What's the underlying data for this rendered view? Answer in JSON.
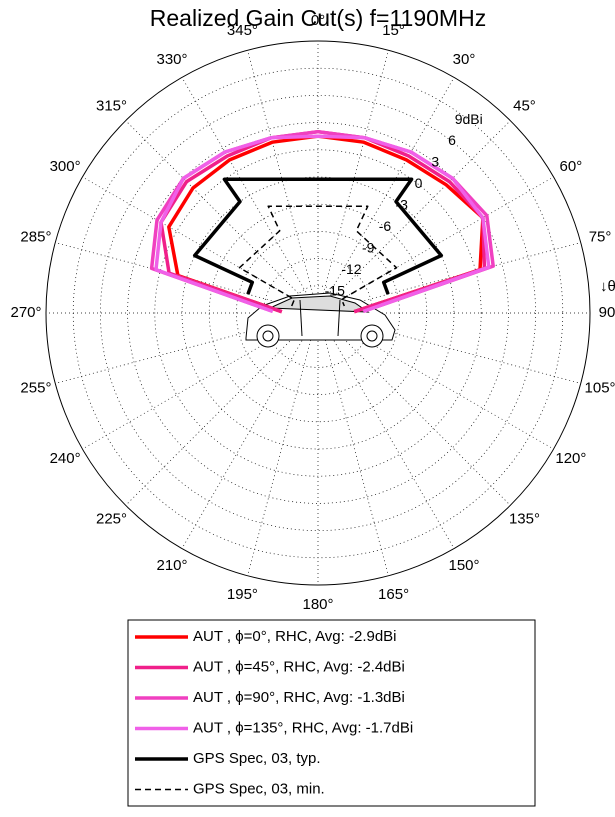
{
  "chart_data": {
    "type": "polar",
    "title": "Realized Gain Cut(s) f=1190MHz",
    "annotation": "↓θ",
    "rlim": [
      -18,
      12
    ],
    "rticks": [
      -15,
      -12,
      -9,
      -6,
      -3,
      0,
      3,
      6,
      {
        "value": 9,
        "label": "9dBi"
      }
    ],
    "thetaticks": [
      {
        "value": 0,
        "label": "0°"
      },
      {
        "value": 15,
        "label": "15°"
      },
      {
        "value": 30,
        "label": "30°"
      },
      {
        "value": 45,
        "label": "45°"
      },
      {
        "value": 60,
        "label": "60°"
      },
      {
        "value": 75,
        "label": "75°"
      },
      {
        "value": 90,
        "label": "90°"
      },
      {
        "value": 105,
        "label": "105°"
      },
      {
        "value": 120,
        "label": "120°"
      },
      {
        "value": 135,
        "label": "135°"
      },
      {
        "value": 150,
        "label": "150°"
      },
      {
        "value": 165,
        "label": "165°"
      },
      {
        "value": 180,
        "label": "180°"
      },
      {
        "value": 195,
        "label": "195°"
      },
      {
        "value": 210,
        "label": "210°"
      },
      {
        "value": 225,
        "label": "225°"
      },
      {
        "value": 240,
        "label": "240°"
      },
      {
        "value": 255,
        "label": "255°"
      },
      {
        "value": 270,
        "label": "270°"
      },
      {
        "value": 285,
        "label": "285°"
      },
      {
        "value": 300,
        "label": "300°"
      },
      {
        "value": 315,
        "label": "315°"
      },
      {
        "value": 330,
        "label": "330°"
      },
      {
        "value": 345,
        "label": "345°"
      }
    ],
    "grid": true,
    "series": [
      {
        "name": "AUT , ϕ=0°, RHC, Avg: -2.9dBi",
        "color": "#ff0000",
        "dash": false,
        "theta": [
          -88,
          -75,
          -60,
          -45,
          -30,
          -15,
          0,
          15,
          30,
          45,
          60,
          75,
          88
        ],
        "values": [
          -14,
          -2,
          1,
          1.5,
          1.5,
          1.5,
          1.5,
          1.5,
          1.5,
          2,
          3,
          0.5,
          -14
        ]
      },
      {
        "name": "AUT , ϕ=45°, RHC, Avg: -2.4dBi",
        "color": "#f0208a",
        "dash": false,
        "theta": [
          -88,
          -75,
          -60,
          -45,
          -30,
          -15,
          0,
          15,
          30,
          45,
          60,
          75,
          88
        ],
        "values": [
          -14,
          -1,
          2,
          2.5,
          2,
          2,
          2,
          2,
          2,
          2.5,
          3,
          1,
          -14
        ]
      },
      {
        "name": "AUT , ϕ=90°, RHC, Avg: -1.3dBi",
        "color": "#f040c0",
        "dash": false,
        "theta": [
          -88,
          -75,
          -60,
          -45,
          -30,
          -15,
          0,
          15,
          30,
          45,
          60,
          75,
          88
        ],
        "values": [
          -13,
          1,
          2.5,
          3,
          2.5,
          2,
          2,
          2,
          2.5,
          3,
          3.5,
          2,
          -13
        ]
      },
      {
        "name": "AUT , ϕ=135°, RHC, Avg: -1.7dBi",
        "color": "#f060e8",
        "dash": false,
        "theta": [
          -88,
          -75,
          -60,
          -45,
          -30,
          -15,
          0,
          15,
          30,
          45,
          60,
          75,
          88
        ],
        "values": [
          -13,
          0.5,
          2,
          3,
          2.5,
          2,
          1.5,
          2,
          2.5,
          3,
          3,
          1.5,
          -13
        ]
      },
      {
        "name": "GPS Spec, 03, typ.",
        "color": "#000000",
        "dash": false,
        "theta": [
          -75,
          -65,
          -65,
          -35,
          -35,
          35,
          35,
          65,
          65,
          75
        ],
        "values": [
          -10,
          -10,
          -3,
          -3,
          0,
          0,
          -3,
          -3,
          -10,
          -10
        ]
      },
      {
        "name": "GPS Spec, 03, min.",
        "color": "#000000",
        "dash": true,
        "theta": [
          -75,
          -60,
          -60,
          -25,
          -25,
          25,
          25,
          60,
          60,
          75
        ],
        "values": [
          -15,
          -15,
          -8,
          -8,
          -5,
          -5,
          -8,
          -8,
          -15,
          -15
        ]
      }
    ]
  }
}
